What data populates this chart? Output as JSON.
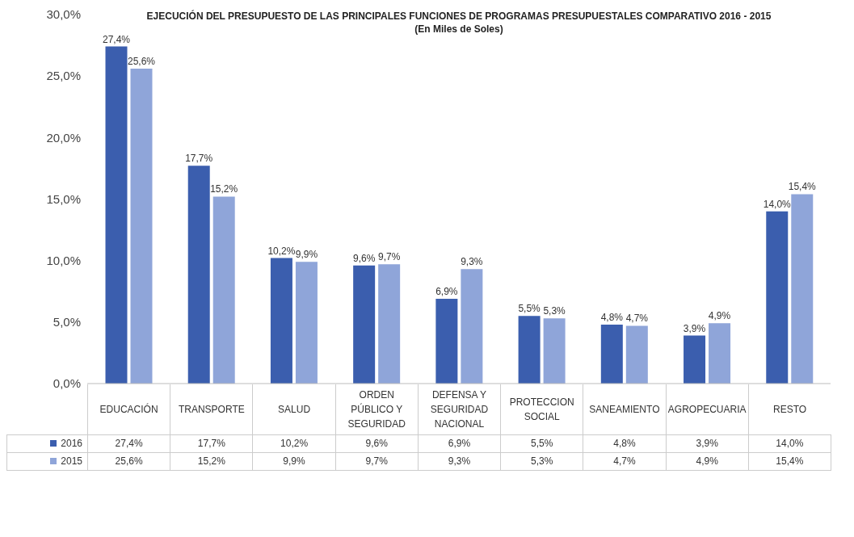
{
  "chart_data": {
    "type": "bar",
    "title": "EJECUCIÓN DEL PRESUPUESTO DE LAS PRINCIPALES FUNCIONES DE PROGRAMAS PRESUPUESTALES COMPARATIVO 2016 - 2015",
    "subtitle": "(En Miles de Soles)",
    "categories": [
      "EDUCACIÓN",
      "TRANSPORTE",
      "SALUD",
      "ORDEN PÚBLICO Y SEGURIDAD",
      "DEFENSA Y SEGURIDAD NACIONAL",
      "PROTECCION SOCIAL",
      "SANEAMIENTO",
      "AGROPECUARIA",
      "RESTO"
    ],
    "series": [
      {
        "name": "2016",
        "color": "#3b5eae",
        "values": [
          27.4,
          17.7,
          10.2,
          9.6,
          6.9,
          5.5,
          4.8,
          3.9,
          14.0
        ],
        "value_labels": [
          "27,4%",
          "17,7%",
          "10,2%",
          "9,6%",
          "6,9%",
          "5,5%",
          "4,8%",
          "3,9%",
          "14,0%"
        ]
      },
      {
        "name": "2015",
        "color": "#8fa5d9",
        "values": [
          25.6,
          15.2,
          9.9,
          9.7,
          9.3,
          5.3,
          4.7,
          4.9,
          15.4
        ],
        "value_labels": [
          "25,6%",
          "15,2%",
          "9,9%",
          "9,7%",
          "9,3%",
          "5,3%",
          "4,7%",
          "4,9%",
          "15,4%"
        ]
      }
    ],
    "ylim": [
      0,
      30
    ],
    "yticks": [
      {
        "value": 0,
        "label": "0,0%"
      },
      {
        "value": 5,
        "label": "5,0%"
      },
      {
        "value": 10,
        "label": "10,0%"
      },
      {
        "value": 15,
        "label": "15,0%"
      },
      {
        "value": 20,
        "label": "20,0%"
      },
      {
        "value": 25,
        "label": "25,0%"
      },
      {
        "value": 30,
        "label": "30,0%"
      }
    ],
    "grid": false,
    "legend": "bottom"
  }
}
